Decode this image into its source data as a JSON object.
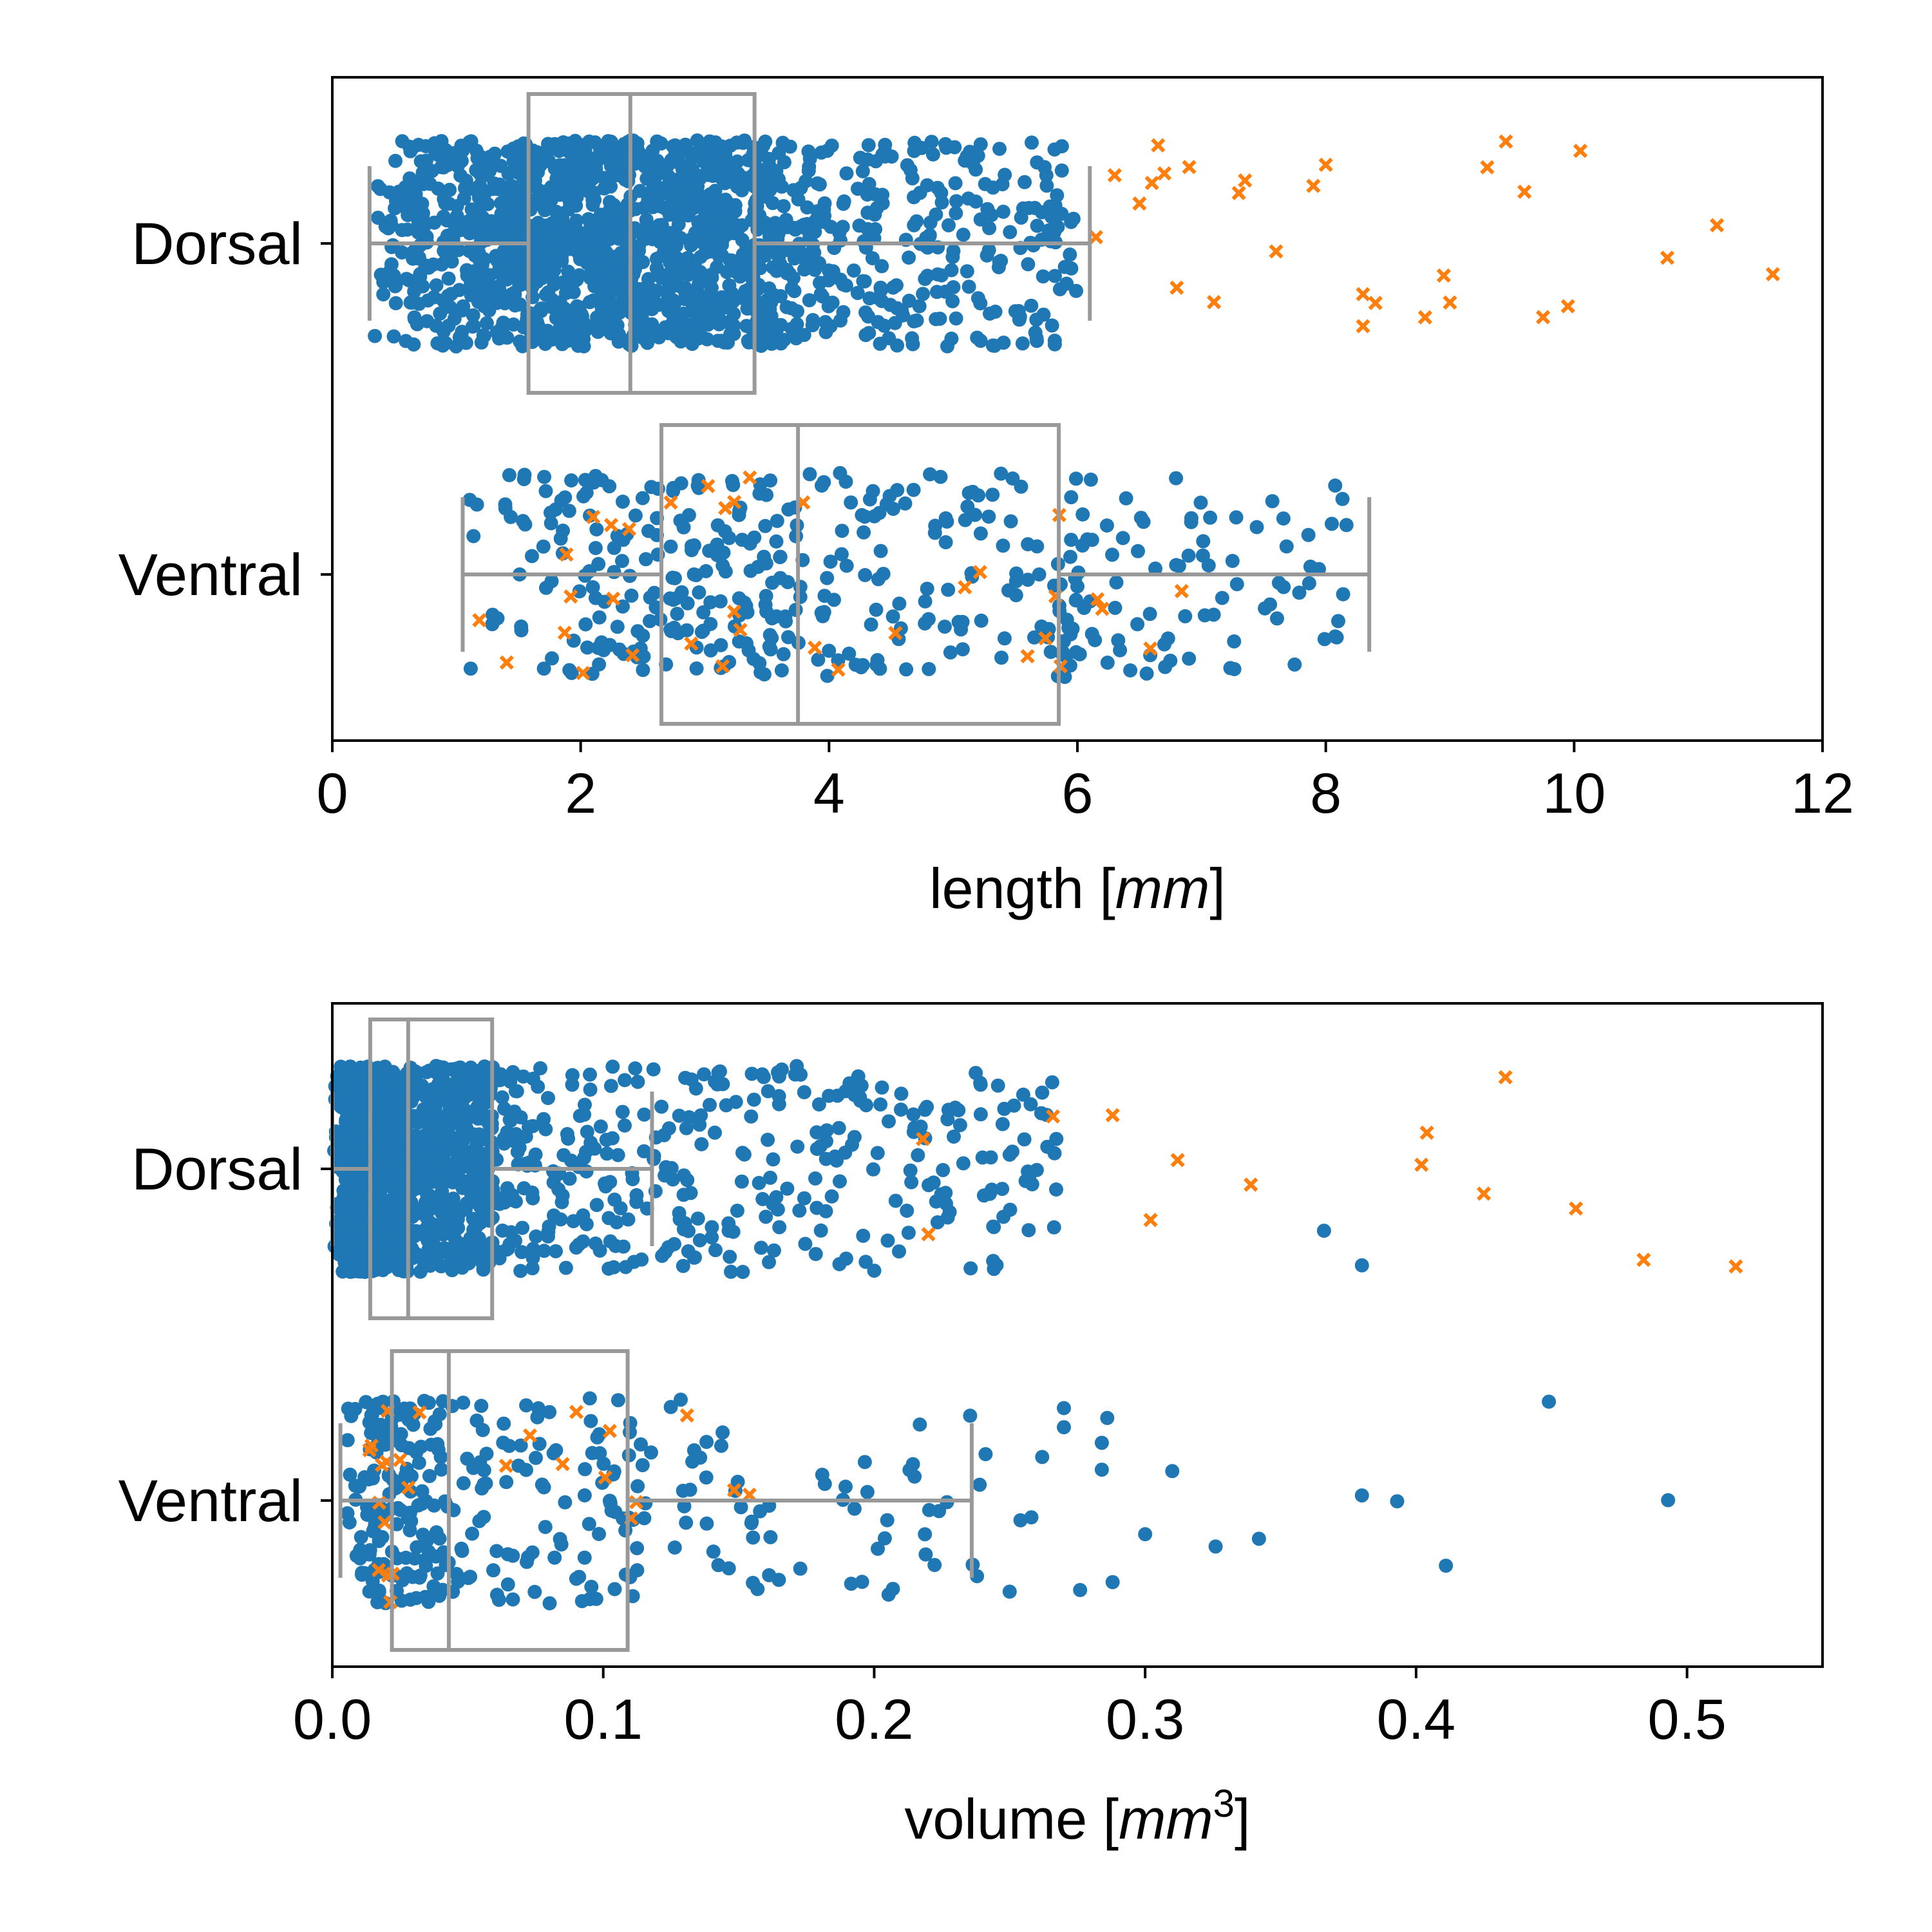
{
  "colors": {
    "points": "#1f77b4",
    "markers": "#ff7f0e",
    "box": "#999999",
    "axes": "#000000",
    "background": "#ffffff"
  },
  "chart_data": [
    {
      "type": "scatter",
      "subtype": "strip plot with box plot overlay (horizontal)",
      "xlabel": "length [mm]",
      "xlabel_parts": {
        "prefix": "length [",
        "italic": "mm",
        "suffix": "]"
      },
      "xlim": [
        0,
        12
      ],
      "xticks": [
        0,
        2,
        4,
        6,
        8,
        10,
        12
      ],
      "xtick_labels": [
        "0",
        "2",
        "4",
        "6",
        "8",
        "10",
        "12"
      ],
      "categories": [
        "Dorsal",
        "Ventral"
      ],
      "grid": false,
      "box": [
        {
          "category": "Dorsal",
          "whisker_low": 0.3,
          "q1": 1.58,
          "median": 2.4,
          "q3": 3.4,
          "whisker_high": 6.1
        },
        {
          "category": "Ventral",
          "whisker_low": 1.05,
          "q1": 2.65,
          "median": 3.75,
          "q3": 5.85,
          "whisker_high": 8.35
        }
      ],
      "series": [
        {
          "category": "Dorsal",
          "marker": "dot",
          "color": "#1f77b4",
          "count": 1600,
          "range": [
            0.3,
            6.0
          ],
          "distribution": "dense 0.3–3.4, thinning to 6.0"
        },
        {
          "category": "Dorsal",
          "marker": "x",
          "color": "#ff7f0e",
          "values": [
            6.15,
            6.3,
            6.5,
            6.6,
            6.65,
            6.7,
            6.8,
            6.9,
            7.1,
            7.3,
            7.35,
            7.6,
            7.9,
            8.0,
            8.3,
            8.3,
            8.4,
            8.8,
            8.95,
            9.0,
            9.3,
            9.45,
            9.6,
            9.75,
            9.95,
            10.05,
            10.75,
            11.15,
            11.6
          ]
        },
        {
          "category": "Ventral",
          "marker": "dot",
          "color": "#1f77b4",
          "count": 420,
          "range": [
            1.05,
            8.2
          ]
        },
        {
          "category": "Ventral",
          "marker": "x",
          "color": "#ff7f0e",
          "count": 35,
          "range": [
            1.1,
            8.35
          ]
        }
      ]
    },
    {
      "type": "scatter",
      "subtype": "strip plot with box plot overlay (horizontal)",
      "xlabel": "volume [mm3]",
      "xlabel_parts": {
        "prefix": "volume [",
        "italic": "mm",
        "sup": "3",
        "suffix": "]"
      },
      "xlim": [
        0,
        0.55
      ],
      "xticks": [
        0.0,
        0.1,
        0.2,
        0.3,
        0.4,
        0.5
      ],
      "xtick_labels": [
        "0.0",
        "0.1",
        "0.2",
        "0.3",
        "0.4",
        "0.5"
      ],
      "categories": [
        "Dorsal",
        "Ventral"
      ],
      "grid": false,
      "box": [
        {
          "category": "Dorsal",
          "whisker_low": 0.0,
          "q1": 0.014,
          "median": 0.028,
          "q3": 0.059,
          "whisker_high": 0.118
        },
        {
          "category": "Ventral",
          "whisker_low": 0.003,
          "q1": 0.022,
          "median": 0.043,
          "q3": 0.109,
          "whisker_high": 0.236
        }
      ],
      "series": [
        {
          "category": "Dorsal",
          "marker": "dot",
          "color": "#1f77b4",
          "count": 1500,
          "range": [
            0.0,
            0.27
          ],
          "distribution": "very dense 0–0.08, sparse beyond"
        },
        {
          "category": "Dorsal",
          "marker": "dot",
          "color": "#1f77b4",
          "values": [
            0.2,
            0.205,
            0.24,
            0.248,
            0.25,
            0.255,
            0.257,
            0.26,
            0.262,
            0.366,
            0.38
          ]
        },
        {
          "category": "Dorsal",
          "marker": "x",
          "color": "#ff7f0e",
          "values": [
            0.218,
            0.22,
            0.266,
            0.288,
            0.302,
            0.312,
            0.339,
            0.402,
            0.404,
            0.425,
            0.433,
            0.459,
            0.484,
            0.518
          ]
        },
        {
          "category": "Ventral",
          "marker": "dot",
          "color": "#1f77b4",
          "count": 330,
          "range": [
            0.005,
            0.245
          ]
        },
        {
          "category": "Ventral",
          "marker": "dot",
          "color": "#1f77b4",
          "values": [
            0.25,
            0.254,
            0.258,
            0.262,
            0.27,
            0.27,
            0.276,
            0.284,
            0.284,
            0.286,
            0.288,
            0.3,
            0.31,
            0.326,
            0.342,
            0.38,
            0.393,
            0.411,
            0.449,
            0.493
          ]
        },
        {
          "category": "Ventral",
          "marker": "x",
          "color": "#ff7f0e",
          "count": 25,
          "range": [
            0.01,
            0.165
          ]
        }
      ]
    }
  ]
}
